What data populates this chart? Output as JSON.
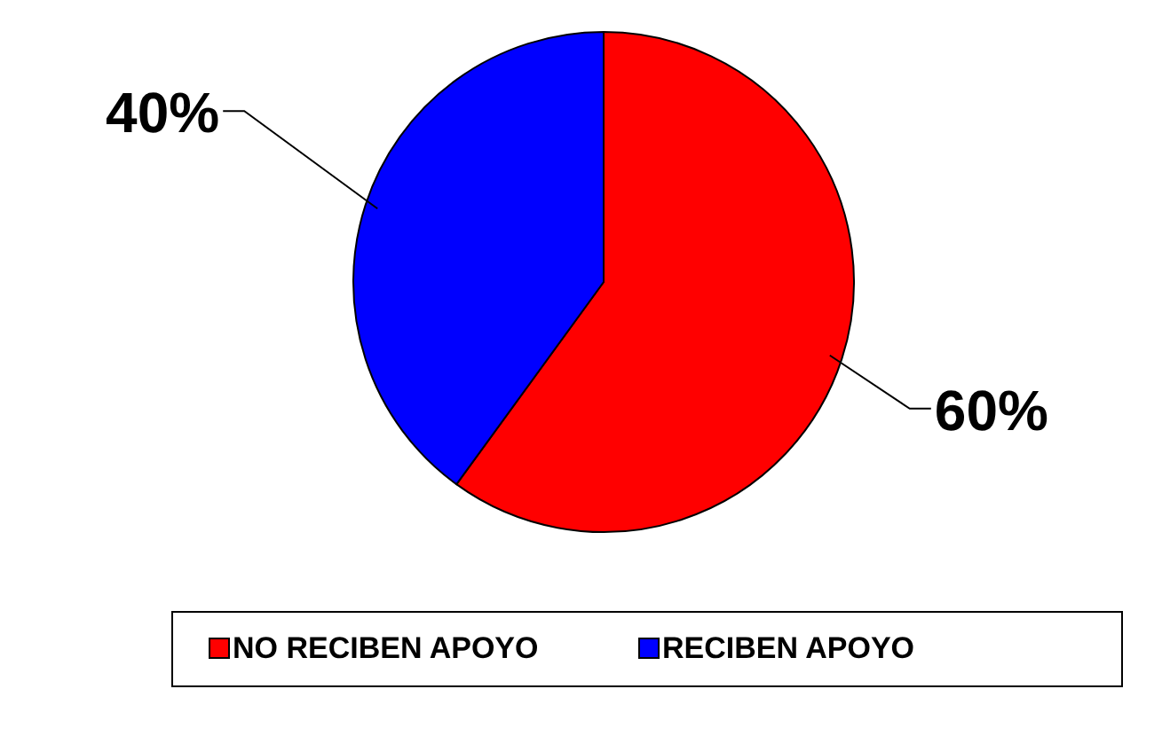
{
  "chart_data": {
    "type": "pie",
    "categories": [
      "NO RECIBEN APOYO",
      "RECIBEN APOYO"
    ],
    "values": [
      60,
      40
    ],
    "colors": [
      "#ff0000",
      "#0000ff"
    ],
    "value_labels": [
      "60%",
      "40%"
    ],
    "legend": "bottom"
  }
}
